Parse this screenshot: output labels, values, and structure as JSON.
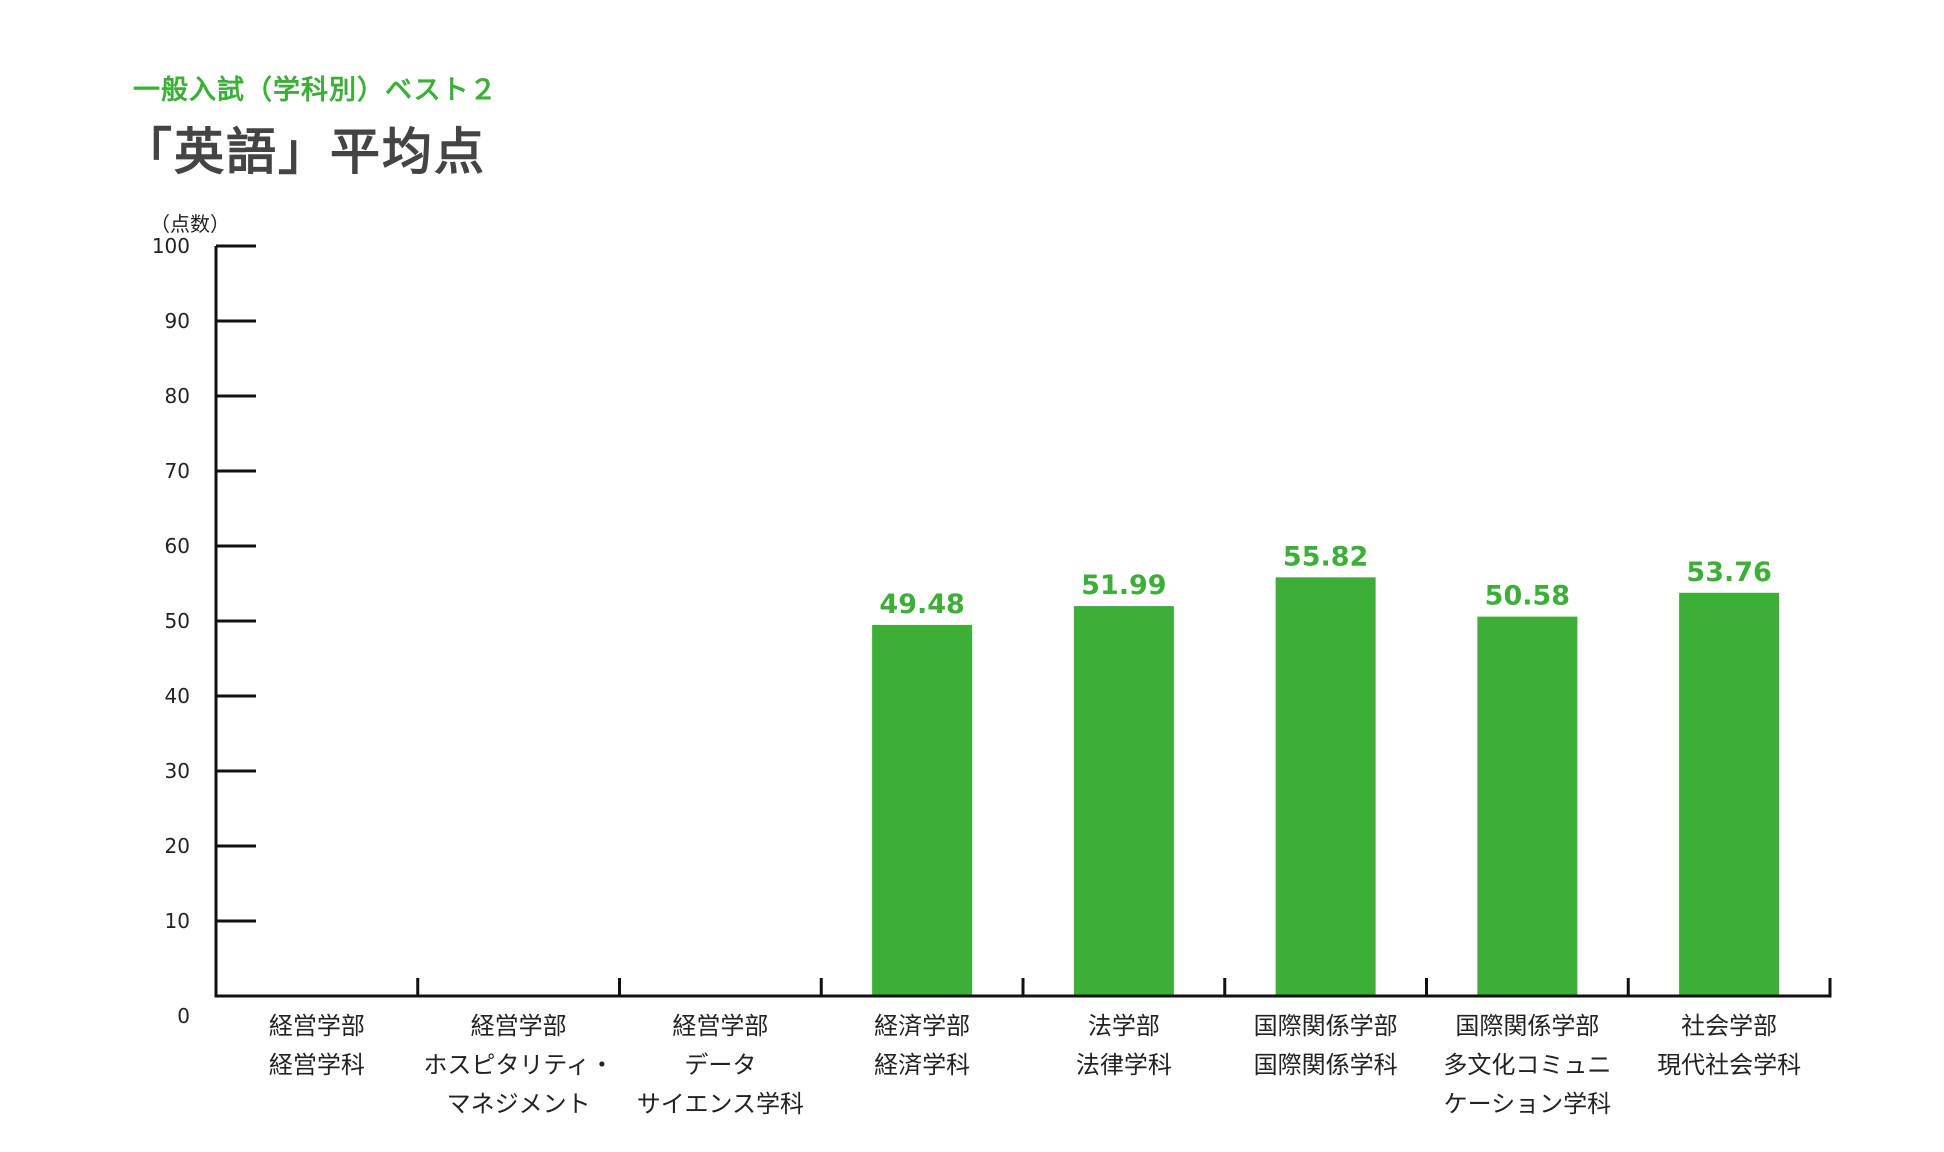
{
  "header": {
    "subtitle": "一般入試（学科別）ベスト２",
    "title": "「英語」平均点"
  },
  "chart_data": {
    "type": "bar",
    "ylabel": "（点数）",
    "ylim": [
      0,
      100
    ],
    "yticks": [
      0,
      10,
      20,
      30,
      40,
      50,
      60,
      70,
      80,
      90,
      100
    ],
    "grid": false,
    "categories": [
      [
        "経営学部",
        "経営学科"
      ],
      [
        "経営学部",
        "ホスピタリティ・",
        "マネジメント"
      ],
      [
        "経営学部",
        "データ",
        "サイエンス学科"
      ],
      [
        "経済学部",
        "経済学科"
      ],
      [
        "法学部",
        "法律学科"
      ],
      [
        "国際関係学部",
        "国際関係学科"
      ],
      [
        "国際関係学部",
        "多文化コミュニ",
        "ケーション学科"
      ],
      [
        "社会学部",
        "現代社会学科"
      ]
    ],
    "values": [
      null,
      null,
      null,
      49.48,
      51.99,
      55.82,
      50.58,
      53.76
    ],
    "value_labels": [
      "",
      "",
      "",
      "49.48",
      "51.99",
      "55.82",
      "50.58",
      "53.76"
    ],
    "bar_color": "#3dae38",
    "axis_color": "#111111"
  }
}
